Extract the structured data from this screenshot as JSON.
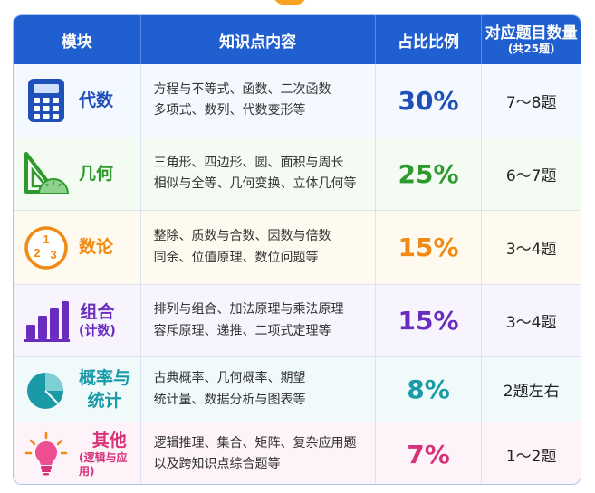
{
  "headers": {
    "module": "模块",
    "content": "知识点内容",
    "ratio": "占比比例",
    "count": "对应题目数量",
    "count_sub": "(共25题)"
  },
  "rows": [
    {
      "name": "代数",
      "sub": "",
      "content_line1": "方程与不等式、函数、二次函数",
      "content_line2": "多项式、数列、代数变形等",
      "ratio": "30%",
      "count": "7～8题",
      "icon": "calculator-icon",
      "color": "#1f4fb8",
      "bg": "#f4f8ff"
    },
    {
      "name": "几何",
      "sub": "",
      "content_line1": "三角形、四边形、圆、面积与周长",
      "content_line2": "相似与全等、几何变换、立体几何等",
      "ratio": "25%",
      "count": "6～7题",
      "icon": "set-square-protractor-icon",
      "color": "#2e9a2e",
      "bg": "#f3fbf2"
    },
    {
      "name": "数论",
      "sub": "",
      "content_line1": "整除、质数与合数、因数与倍数",
      "content_line2": "同余、位值原理、数位问题等",
      "ratio": "15%",
      "count": "3～4题",
      "icon": "numbers-123-icon",
      "color": "#f08a12",
      "bg": "#fffaf0"
    },
    {
      "name": "组合",
      "sub": "(计数)",
      "content_line1": "排列与组合、加法原理与乘法原理",
      "content_line2": "容斥原理、递推、二项式定理等",
      "ratio": "15%",
      "count": "3～4题",
      "icon": "bar-chart-icon",
      "color": "#6a2bbf",
      "bg": "#f8f4fe"
    },
    {
      "name": "概率与",
      "name2": "统计",
      "sub": "",
      "content_line1": "古典概率、几何概率、期望",
      "content_line2": "统计量、数据分析与图表等",
      "ratio": "8%",
      "count": "2题左右",
      "icon": "pie-chart-icon",
      "color": "#1a9aa6",
      "bg": "#f1fafb"
    },
    {
      "name": "其他",
      "sub": "(逻辑与应用)",
      "content_line1": "逻辑推理、集合、矩阵、复杂应用题",
      "content_line2": "以及跨知识点综合题等",
      "ratio": "7%",
      "count": "1～2题",
      "icon": "lightbulb-icon",
      "color": "#d6337a",
      "bg": "#fdf3f8"
    }
  ],
  "colors": {
    "header_bg": "#1f5fd0",
    "border": "#a9c5ee"
  }
}
